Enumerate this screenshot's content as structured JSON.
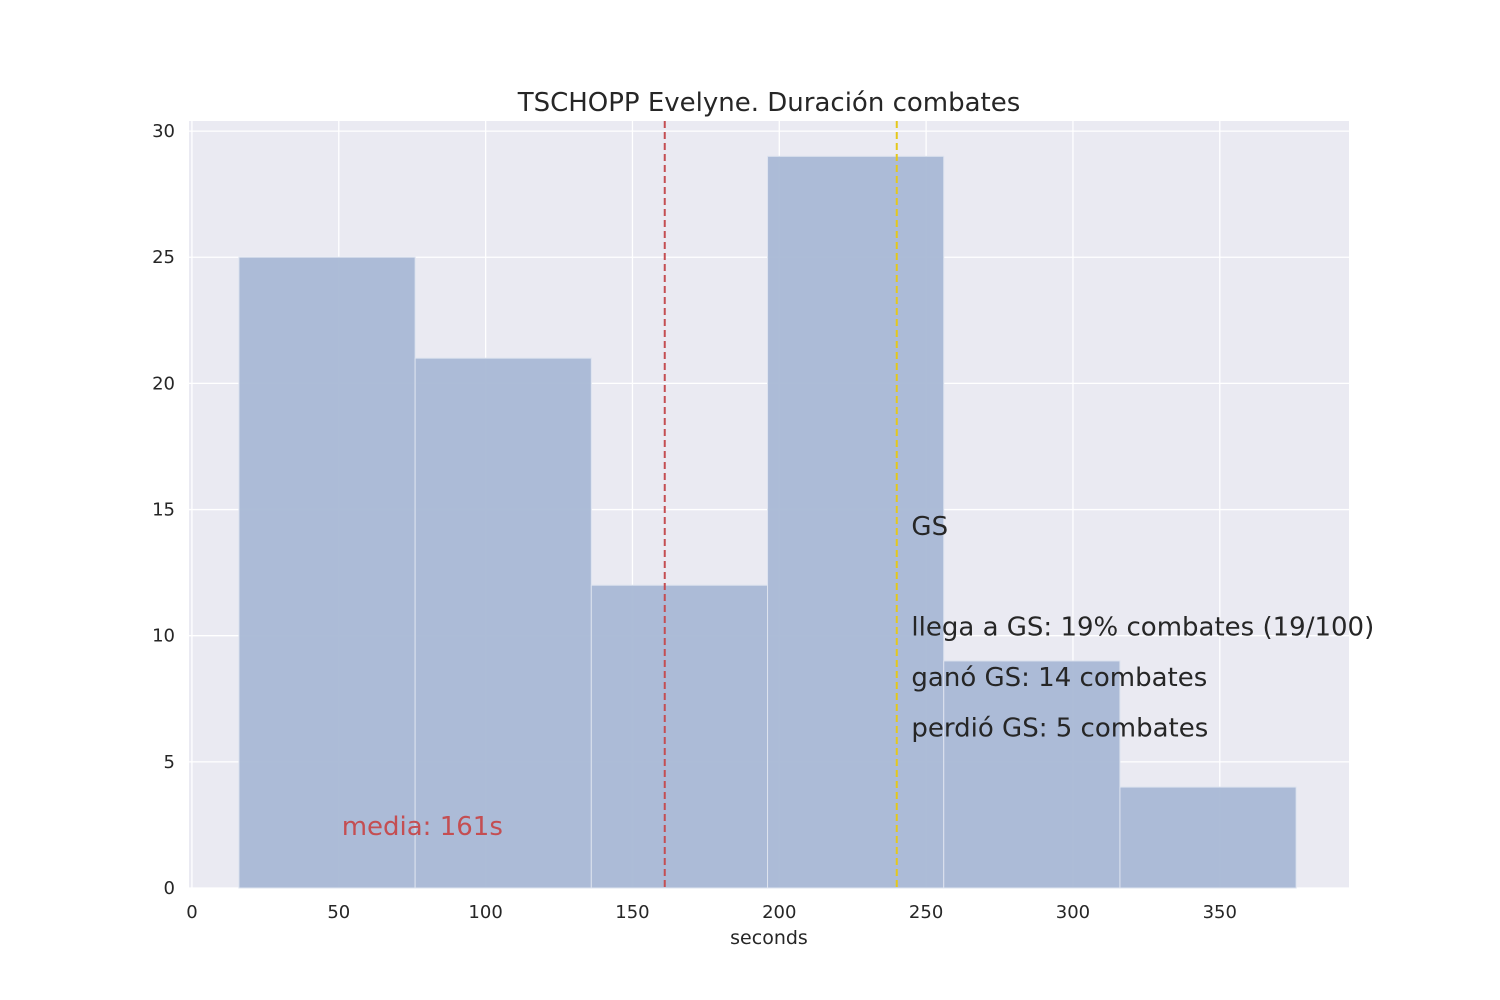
{
  "chart_data": {
    "type": "bar",
    "title": "TSCHOPP Evelyne. Duración combates",
    "xlabel": "seconds",
    "ylabel": "",
    "xlim": [
      -1,
      394
    ],
    "ylim": [
      0,
      30.4
    ],
    "grid": true,
    "background": "#eaeaf2",
    "bar_color": "#a9b8d5",
    "bins": [
      {
        "x0": 16,
        "x1": 76,
        "count": 25
      },
      {
        "x0": 76,
        "x1": 136,
        "count": 21
      },
      {
        "x0": 136,
        "x1": 196,
        "count": 12
      },
      {
        "x0": 196,
        "x1": 256,
        "count": 29
      },
      {
        "x0": 256,
        "x1": 316,
        "count": 9
      },
      {
        "x0": 316,
        "x1": 376,
        "count": 4
      }
    ],
    "xticks": [
      0,
      50,
      100,
      150,
      200,
      250,
      300,
      350
    ],
    "yticks": [
      0,
      5,
      10,
      15,
      20,
      25,
      30
    ],
    "vlines": [
      {
        "x": 161,
        "color": "#c44e52",
        "style": "dashed"
      },
      {
        "x": 240,
        "color": "#e5c81a",
        "style": "dashed"
      }
    ],
    "annotations": {
      "mean": {
        "text": "media: 161s",
        "x": 51,
        "y": 2.1,
        "color": "#c44e52"
      },
      "gs": [
        {
          "text": "GS",
          "x": 245,
          "y": 14
        },
        {
          "text": "llega a GS: 19% combates (19/100)",
          "x": 245,
          "y": 10
        },
        {
          "text": "ganó GS: 14 combates",
          "x": 245,
          "y": 8
        },
        {
          "text": "perdió GS: 5 combates",
          "x": 245,
          "y": 6
        }
      ]
    }
  }
}
